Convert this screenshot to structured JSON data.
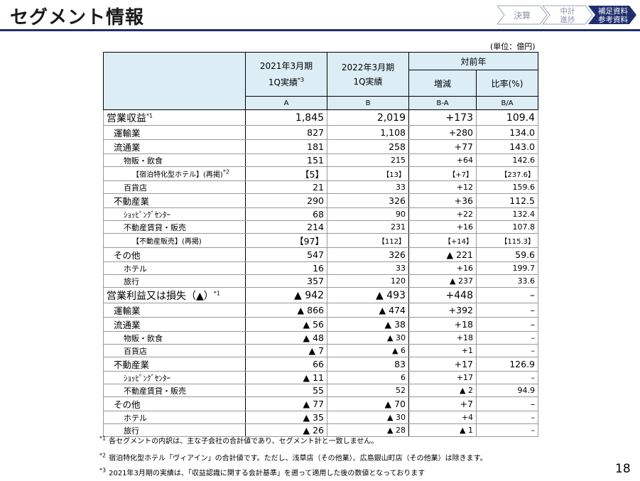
{
  "header": {
    "title": "セグメント情報",
    "nav": [
      {
        "lines": [
          "決算"
        ]
      },
      {
        "lines": [
          "中計",
          "進捗"
        ]
      },
      {
        "lines": [
          "補足資料",
          "参考資料"
        ]
      }
    ]
  },
  "unit": "(単位：億円)",
  "table": {
    "columns": [
      {
        "lines": [
          "2021年3月期",
          "1Q実績"
        ],
        "sup": "*3",
        "code": "A"
      },
      {
        "lines": [
          "2022年3月期",
          "1Q実績"
        ],
        "code": "B"
      }
    ],
    "group": "対前年",
    "sub_columns": [
      {
        "label": "増減",
        "code": "B-A"
      },
      {
        "label": "比率(%)",
        "code": "B/A"
      }
    ],
    "rows": [
      {
        "label": "営業収益",
        "sup": "*1",
        "cells": [
          "1,845",
          "2,019",
          "+173",
          "109.4"
        ]
      },
      {
        "label": "運輸業",
        "cells": [
          "827",
          "1,108",
          "+280",
          "134.0"
        ]
      },
      {
        "label": "流通業",
        "cells": [
          "181",
          "258",
          "+77",
          "143.0"
        ]
      },
      {
        "label": "物販・飲食",
        "cells": [
          "151",
          "215",
          "+64",
          "142.6"
        ]
      },
      {
        "label": "【宿泊特化型ホテル】(再掲)",
        "sup": "*2",
        "cells": [
          "【5】",
          "【13】",
          "【+7】",
          "【237.6】"
        ]
      },
      {
        "label": "百貨店",
        "cells": [
          "21",
          "33",
          "+12",
          "159.6"
        ]
      },
      {
        "label": "不動産業",
        "cells": [
          "290",
          "326",
          "+36",
          "112.5"
        ]
      },
      {
        "label": "ｼｮｯﾋﾟﾝｸﾞｾﾝﾀｰ",
        "cells": [
          "68",
          "90",
          "+22",
          "132.4"
        ]
      },
      {
        "label": "不動産賃貸・販売",
        "cells": [
          "214",
          "231",
          "+16",
          "107.8"
        ]
      },
      {
        "label": "【不動産販売】(再掲)",
        "cells": [
          "【97】",
          "【112】",
          "【+14】",
          "【115.3】"
        ]
      },
      {
        "label": "その他",
        "cells": [
          "547",
          "326",
          "▲ 221",
          "59.6"
        ]
      },
      {
        "label": "ホテル",
        "cells": [
          "16",
          "33",
          "+16",
          "199.7"
        ]
      },
      {
        "label": "旅行",
        "cells": [
          "357",
          "120",
          "▲ 237",
          "33.6"
        ]
      },
      {
        "label": "営業利益又は損失（▲）",
        "sup": "*1",
        "cells": [
          "▲ 942",
          "▲ 493",
          "+448",
          "–"
        ]
      },
      {
        "label": "運輸業",
        "cells": [
          "▲ 866",
          "▲ 474",
          "+392",
          "–"
        ]
      },
      {
        "label": "流通業",
        "cells": [
          "▲ 56",
          "▲ 38",
          "+18",
          "–"
        ]
      },
      {
        "label": "物販・飲食",
        "cells": [
          "▲ 48",
          "▲ 30",
          "+18",
          "–"
        ]
      },
      {
        "label": "百貨店",
        "cells": [
          "▲ 7",
          "▲ 6",
          "+1",
          "–"
        ]
      },
      {
        "label": "不動産業",
        "cells": [
          "66",
          "83",
          "+17",
          "126.9"
        ]
      },
      {
        "label": "ｼｮｯﾋﾟﾝｸﾞｾﾝﾀｰ",
        "cells": [
          "▲ 11",
          "6",
          "+17",
          "–"
        ]
      },
      {
        "label": "不動産賃貸・販売",
        "cells": [
          "55",
          "52",
          "▲ 2",
          "94.9"
        ]
      },
      {
        "label": "その他",
        "cells": [
          "▲ 77",
          "▲ 70",
          "+7",
          "–"
        ]
      },
      {
        "label": "ホテル",
        "cells": [
          "▲ 35",
          "▲ 30",
          "+4",
          "–"
        ]
      },
      {
        "label": "旅行",
        "cells": [
          "▲ 26",
          "▲ 28",
          "▲ 1",
          "–"
        ]
      }
    ]
  },
  "footnotes": [
    {
      "mark": "*1",
      "text": "各セグメントの内訳は、主な子会社の合計値であり、セグメント計と一致しません。"
    },
    {
      "mark": "*2",
      "text": "宿泊特化型ホテル「ヴィアイン」の合計値です。ただし、浅草店（その他業）、広島銀山町店（その他業）は除きます。"
    },
    {
      "mark": "*3",
      "text": "2021年3月期の実績は、「収益認識に関する会計基準」を遡って適用した後の数値となっております"
    }
  ],
  "page_number": "18"
}
